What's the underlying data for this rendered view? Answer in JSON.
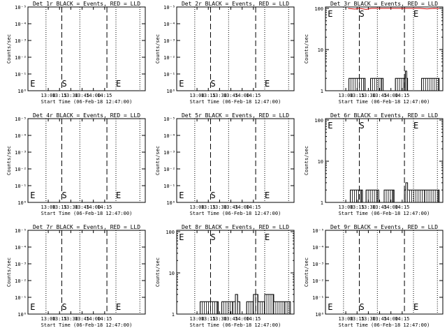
{
  "chart_data": [
    {
      "type": "line",
      "title": "Det 1r BLACK = Events, RED = LLD",
      "xlabel": "Start Time (06-Feb-18 12:47:00)",
      "ylabel": "Counts/sec",
      "scale": "log",
      "yticks": [
        "10⁰",
        "10⁻¹",
        "10⁻²",
        "10⁻³",
        "10⁻⁴",
        "10⁻⁵"
      ],
      "xticks": [
        "13:00",
        "13:15",
        "13:30",
        "13:45",
        "14:00",
        "14:15"
      ],
      "markers": [
        "E",
        "S",
        "E"
      ],
      "events": [],
      "lld": []
    },
    {
      "type": "line",
      "title": "Det 2r BLACK = Events, RED = LLD",
      "xlabel": "Start Time (06-Feb-18 12:47:00)",
      "ylabel": "Counts/sec",
      "scale": "log",
      "yticks": [
        "10⁰",
        "10⁻¹",
        "10⁻²",
        "10⁻³",
        "10⁻⁴",
        "10⁻⁵"
      ],
      "xticks": [
        "13:00",
        "13:15",
        "13:30",
        "13:45",
        "14:00",
        "14:15"
      ],
      "markers": [
        "E",
        "S",
        "E"
      ],
      "events": [],
      "lld": []
    },
    {
      "type": "line",
      "title": "Det 3r BLACK = Events, RED = LLD",
      "xlabel": "Start Time (06-Feb-18 12:47:00)",
      "ylabel": "Counts/sec",
      "scale": "lin",
      "yticks": [
        "1",
        "10",
        "100"
      ],
      "xticks": [
        "13:00",
        "13:15",
        "13:30",
        "13:45",
        "14:00",
        "14:15"
      ],
      "markers": [
        "E",
        "S",
        "E"
      ],
      "events": [
        [
          13.3,
          1
        ],
        [
          13.32,
          2
        ],
        [
          13.65,
          2
        ],
        [
          13.68,
          1
        ],
        [
          13.75,
          1
        ],
        [
          13.8,
          2
        ],
        [
          14.05,
          2
        ],
        [
          14.08,
          1
        ],
        [
          14.25,
          1
        ],
        [
          14.35,
          2
        ],
        [
          14.55,
          2
        ],
        [
          14.57,
          3
        ],
        [
          14.6,
          2
        ],
        [
          14.62,
          1
        ],
        [
          14.9,
          1
        ],
        [
          14.93,
          2
        ],
        [
          15.3,
          2
        ],
        [
          15.32,
          1
        ]
      ],
      "lld": [
        [
          13.3,
          100
        ],
        [
          13.45,
          96
        ],
        [
          13.55,
          100
        ],
        [
          13.7,
          95
        ],
        [
          13.82,
          100
        ],
        [
          14.9,
          100
        ],
        [
          15.05,
          97
        ],
        [
          15.2,
          100
        ],
        [
          15.32,
          99
        ]
      ]
    },
    {
      "type": "line",
      "title": "Det 4r BLACK = Events, RED = LLD",
      "xlabel": "Start Time (06-Feb-18 12:47:00)",
      "ylabel": "Counts/sec",
      "scale": "log",
      "yticks": [
        "10⁰",
        "10⁻¹",
        "10⁻²",
        "10⁻³",
        "10⁻⁴",
        "10⁻⁵"
      ],
      "xticks": [
        "13:00",
        "13:15",
        "13:30",
        "13:45",
        "14:00",
        "14:15"
      ],
      "markers": [
        "E",
        "S",
        "E"
      ],
      "events": [],
      "lld": []
    },
    {
      "type": "line",
      "title": "Det 5r BLACK = Events, RED = LLD",
      "xlabel": "Start Time (06-Feb-18 12:47:00)",
      "ylabel": "Counts/sec",
      "scale": "log",
      "yticks": [
        "10⁰",
        "10⁻¹",
        "10⁻²",
        "10⁻³",
        "10⁻⁴",
        "10⁻⁵"
      ],
      "xticks": [
        "13:00",
        "13:15",
        "13:30",
        "13:45",
        "14:00",
        "14:15"
      ],
      "markers": [
        "E",
        "S",
        "E"
      ],
      "events": [],
      "lld": []
    },
    {
      "type": "line",
      "title": "Det 6r BLACK = Events, RED = LLD",
      "xlabel": "Start Time (06-Feb-18 12:47:00)",
      "ylabel": "Counts/sec",
      "scale": "lin",
      "yticks": [
        "1",
        "10",
        "100"
      ],
      "xticks": [
        "13:00",
        "13:15",
        "13:30",
        "13:45",
        "14:00",
        "14:15"
      ],
      "markers": [
        "E",
        "S",
        "E"
      ],
      "events": [
        [
          13.3,
          1
        ],
        [
          13.35,
          2
        ],
        [
          13.6,
          2
        ],
        [
          13.62,
          1
        ],
        [
          13.7,
          2
        ],
        [
          13.95,
          2
        ],
        [
          13.98,
          1
        ],
        [
          14.1,
          2
        ],
        [
          14.3,
          2
        ],
        [
          14.32,
          1
        ],
        [
          14.5,
          1
        ],
        [
          14.55,
          2
        ],
        [
          14.58,
          3
        ],
        [
          14.62,
          2
        ],
        [
          15.0,
          2
        ],
        [
          15.3,
          2
        ],
        [
          15.32,
          1
        ]
      ],
      "lld": []
    },
    {
      "type": "line",
      "title": "Det 7r BLACK = Events, RED = LLD",
      "xlabel": "Start Time (06-Feb-18 12:47:00)",
      "ylabel": "Counts/sec",
      "scale": "log",
      "yticks": [
        "10⁰",
        "10⁻¹",
        "10⁻²",
        "10⁻³",
        "10⁻⁴",
        "10⁻⁵"
      ],
      "xticks": [
        "13:00",
        "13:15",
        "13:30",
        "13:45",
        "14:00",
        "14:15"
      ],
      "markers": [
        "E",
        "S",
        "E"
      ],
      "events": [],
      "lld": []
    },
    {
      "type": "line",
      "title": "Det 8r BLACK = Events, RED = LLD",
      "xlabel": "Start Time (06-Feb-18 12:47:00)",
      "ylabel": "Counts/sec",
      "scale": "lin",
      "yticks": [
        "1",
        "10",
        "100"
      ],
      "xticks": [
        "13:00",
        "13:15",
        "13:30",
        "13:45",
        "14:00",
        "14:15"
      ],
      "markers": [
        "E",
        "S",
        "E"
      ],
      "events": [
        [
          13.3,
          1
        ],
        [
          13.32,
          2
        ],
        [
          13.7,
          2
        ],
        [
          13.72,
          1
        ],
        [
          13.8,
          2
        ],
        [
          14.05,
          2
        ],
        [
          14.1,
          3
        ],
        [
          14.15,
          2
        ],
        [
          14.2,
          1
        ],
        [
          14.3,
          1
        ],
        [
          14.35,
          2
        ],
        [
          14.5,
          3
        ],
        [
          14.6,
          2
        ],
        [
          14.75,
          3
        ],
        [
          14.95,
          2
        ],
        [
          15.2,
          2
        ],
        [
          15.32,
          1
        ]
      ],
      "lld": []
    },
    {
      "type": "line",
      "title": "Det 9r BLACK = Events, RED = LLD",
      "xlabel": "Start Time (06-Feb-18 12:47:00)",
      "ylabel": "Counts/sec",
      "scale": "log",
      "yticks": [
        "10⁰",
        "10⁻¹",
        "10⁻²",
        "10⁻³",
        "10⁻⁴",
        "10⁻⁵"
      ],
      "xticks": [
        "13:00",
        "13:15",
        "13:30",
        "13:45",
        "14:00",
        "14:15"
      ],
      "markers": [
        "E",
        "S",
        "E"
      ],
      "events": [],
      "lld": []
    }
  ]
}
